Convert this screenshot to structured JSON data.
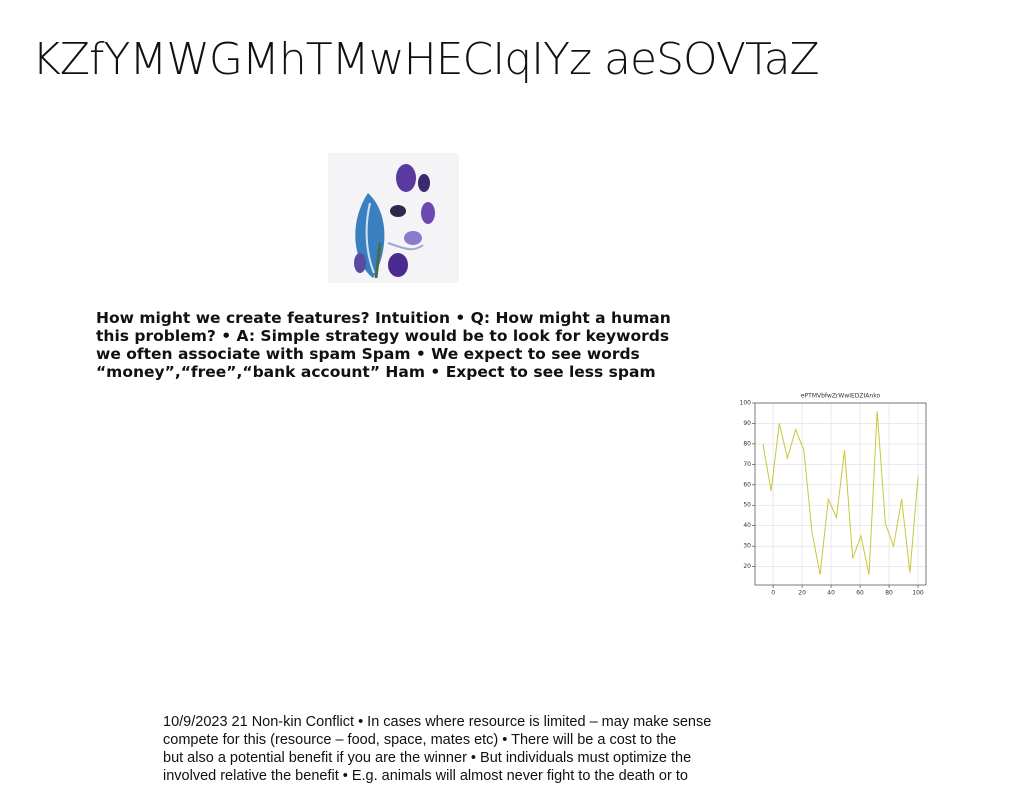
{
  "title": "KZfYMWGMhTMwHECIqIYz aeSOVTaZ",
  "paragraph1": [
    "How might we create features? Intuition • Q: How might a human",
    "this problem? • A: Simple strategy would be to look for keywords",
    "we often associate with spam Spam • We expect to see words",
    "“money”,“free”,“bank account” Ham • Expect to see less spam"
  ],
  "paragraph2": [
    "10/9/2023 21 Non-kin Conflict • In cases where resource is limited – may make sense",
    "compete for this (resource – food, space, mates etc) • There will be a cost to the",
    "but also a potential benefit if you are the winner • But individuals must optimize the",
    "involved relative the benefit • E.g. animals will almost never fight to the death or to"
  ],
  "chart_data": {
    "type": "line",
    "title": "ePTMVbfwZrWwIEDZIAnko",
    "x": [
      -7,
      -1.4,
      4.3,
      9.9,
      15.5,
      21.2,
      26.8,
      32.4,
      38.1,
      43.7,
      49.3,
      54.9,
      60.6,
      66.2,
      71.8,
      77.5,
      83.1,
      88.7,
      94.4,
      100
    ],
    "values": [
      80,
      57,
      90,
      73,
      87,
      77,
      37,
      16,
      53,
      44,
      77,
      24,
      35,
      16,
      96,
      41,
      30,
      53,
      17,
      64
    ],
    "color": "#c8c83c",
    "xlim": [
      -12.5,
      105.5
    ],
    "xticks": [
      0,
      20,
      40,
      60,
      80,
      100
    ],
    "ylim": [
      11,
      100
    ],
    "yticks": [
      20,
      30,
      40,
      50,
      60,
      70,
      80,
      90,
      100
    ],
    "grid": true
  }
}
